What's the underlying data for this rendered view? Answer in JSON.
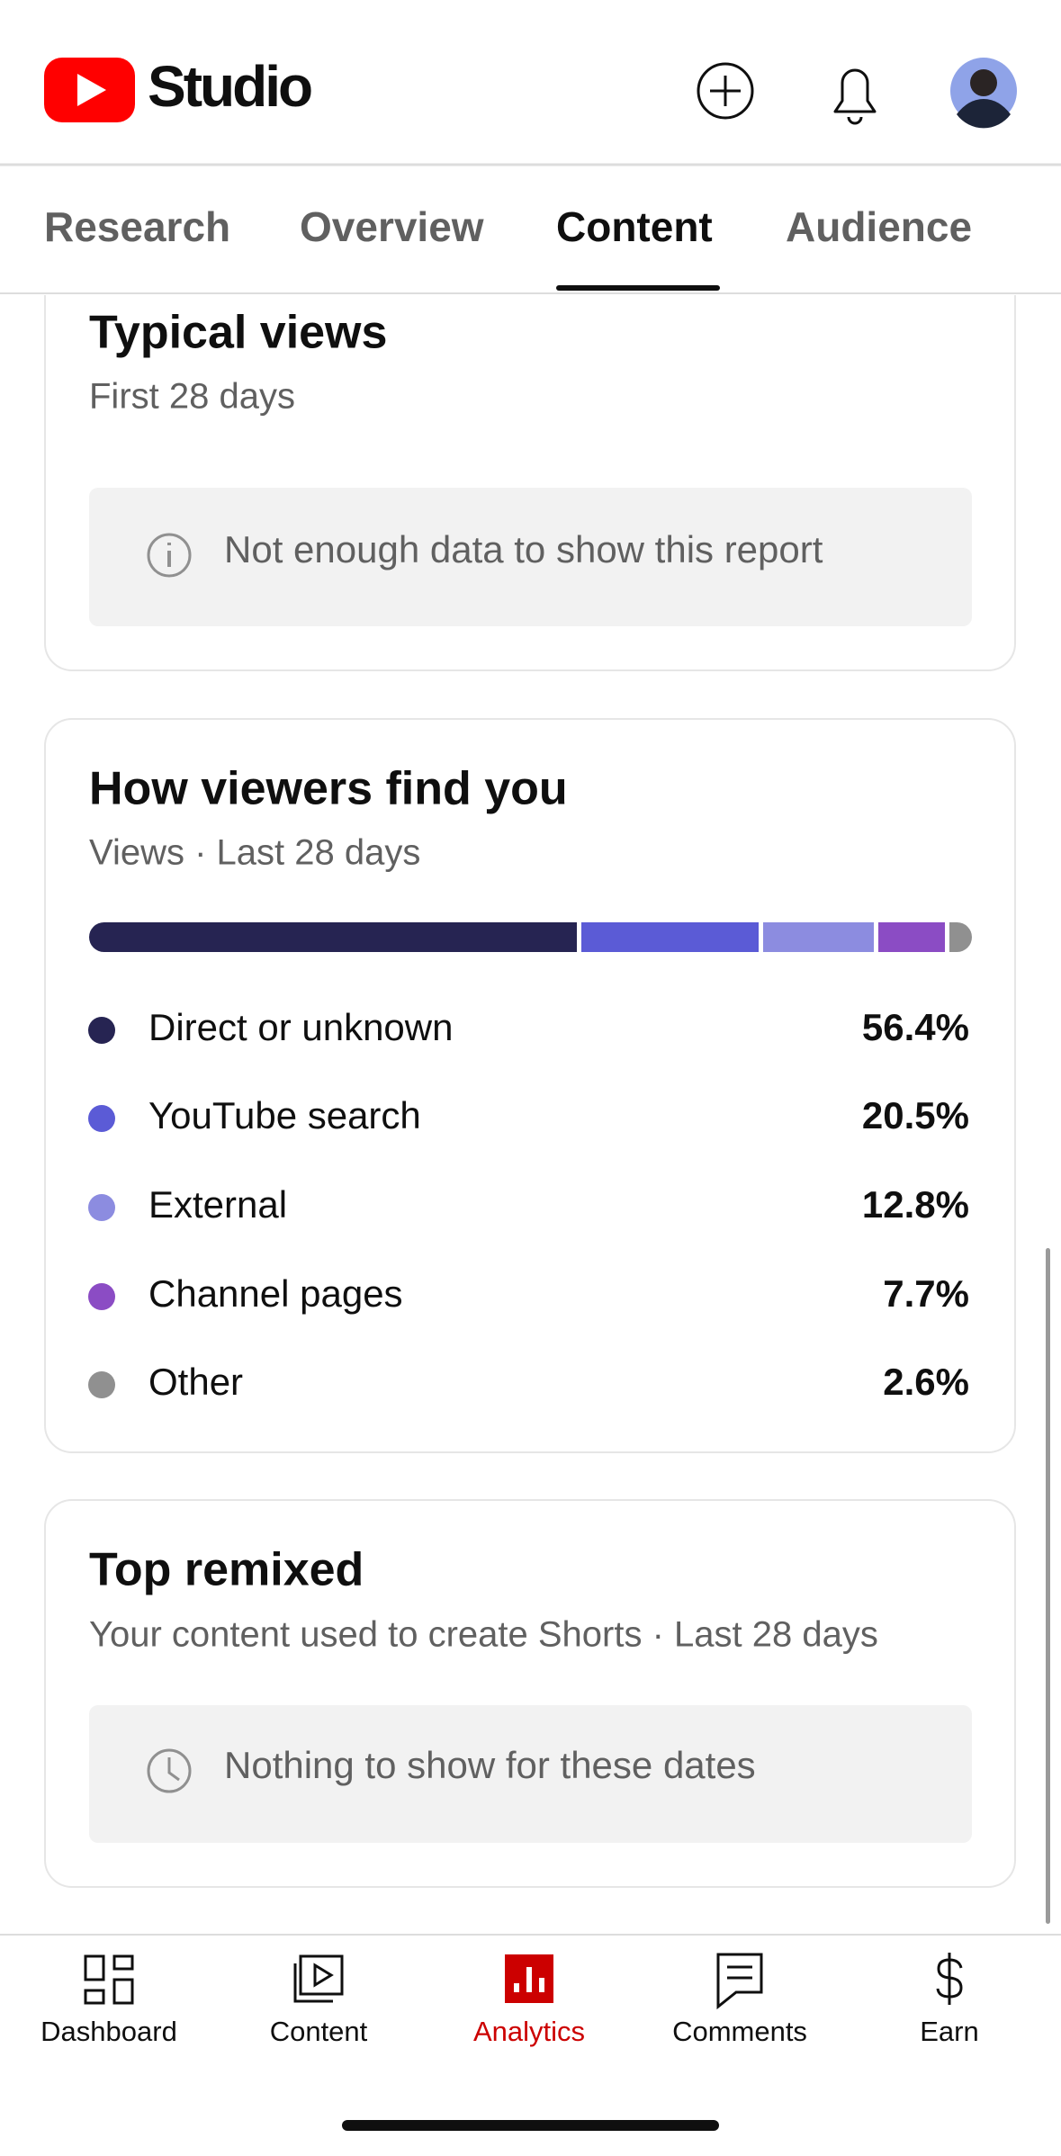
{
  "header": {
    "logo_text": "Studio"
  },
  "tabs": [
    "Research",
    "Overview",
    "Content",
    "Audience"
  ],
  "typical_views": {
    "title": "Typical views",
    "subtitle": "First 28 days",
    "message": "Not enough data to show this report"
  },
  "traffic": {
    "title": "How viewers find you",
    "subtitle": "Views · Last 28 days",
    "names": [
      "Direct or unknown",
      "YouTube search",
      "External",
      "Channel pages",
      "Other"
    ],
    "colors": [
      "#262452",
      "#5b5bd6",
      "#8c8ce0",
      "#8b4cc4",
      "#909090"
    ],
    "values": [
      56.4,
      20.5,
      12.8,
      7.7,
      2.6
    ],
    "value_labels": [
      "56.4%",
      "20.5%",
      "12.8%",
      "7.7%",
      "2.6%"
    ]
  },
  "top_remixed": {
    "title": "Top remixed",
    "subtitle": "Your content used to create Shorts · Last 28 days",
    "message": "Nothing to show for these dates"
  },
  "nav": [
    "Dashboard",
    "Content",
    "Analytics",
    "Comments",
    "Earn"
  ]
}
